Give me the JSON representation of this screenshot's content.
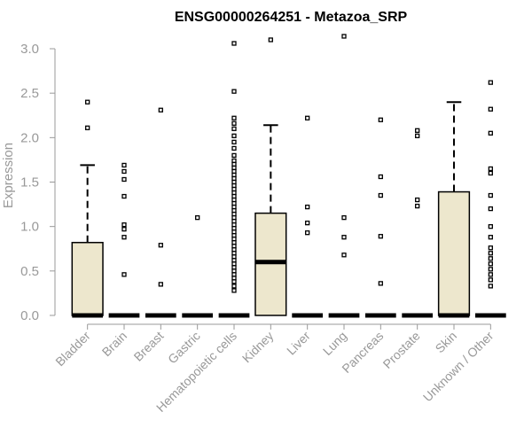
{
  "chart_data": {
    "type": "box",
    "title": "ENSG00000264251 - Metazoa_SRP",
    "ylabel": "Expression",
    "xlabel": "",
    "ylim": [
      0,
      3.0
    ],
    "yticks": [
      "0.0",
      "0.5",
      "1.0",
      "1.5",
      "2.0",
      "2.5",
      "3.0"
    ],
    "box_fill": "#ede7cd",
    "categories": [
      "Bladder",
      "Brain",
      "Breast",
      "Gastric",
      "Hematopoietic cells",
      "Kidney",
      "Liver",
      "Lung",
      "Pancreas",
      "Prostate",
      "Skin",
      "Unknown / Other"
    ],
    "boxes": [
      {
        "q1": 0,
        "median": 0,
        "q3": 0.82,
        "whisker_low": 0,
        "whisker_high": 1.69,
        "outliers": [
          2.4,
          2.11
        ]
      },
      {
        "q1": 0,
        "median": 0,
        "q3": 0,
        "whisker_low": 0,
        "whisker_high": 0,
        "outliers": [
          1.69,
          1.62,
          1.53,
          1.34,
          1.02,
          0.97,
          0.88,
          0.46
        ]
      },
      {
        "q1": 0,
        "median": 0,
        "q3": 0,
        "whisker_low": 0,
        "whisker_high": 0,
        "outliers": [
          2.31,
          0.79,
          0.35
        ]
      },
      {
        "q1": 0,
        "median": 0,
        "q3": 0,
        "whisker_low": 0,
        "whisker_high": 0,
        "outliers": [
          1.1
        ]
      },
      {
        "q1": 0,
        "median": 0,
        "q3": 0,
        "whisker_low": 0,
        "whisker_high": 0,
        "outliers": [
          3.06,
          2.52,
          2.22,
          2.16,
          2.1,
          2.02,
          1.95,
          1.88,
          1.8,
          1.74,
          1.7,
          1.66,
          1.62,
          1.58,
          1.54,
          1.5,
          1.46,
          1.42,
          1.38,
          1.34,
          1.3,
          1.26,
          1.22,
          1.18,
          1.14,
          1.1,
          1.06,
          1.02,
          0.98,
          0.94,
          0.9,
          0.86,
          0.82,
          0.78,
          0.74,
          0.7,
          0.66,
          0.62,
          0.58,
          0.54,
          0.5,
          0.46,
          0.42,
          0.38,
          0.33,
          0.28
        ]
      },
      {
        "q1": 0,
        "median": 0.6,
        "q3": 1.15,
        "whisker_low": 0,
        "whisker_high": 2.14,
        "outliers": [
          3.1
        ]
      },
      {
        "q1": 0,
        "median": 0,
        "q3": 0,
        "whisker_low": 0,
        "whisker_high": 0,
        "outliers": [
          2.22,
          1.22,
          1.04,
          0.93
        ]
      },
      {
        "q1": 0,
        "median": 0,
        "q3": 0,
        "whisker_low": 0,
        "whisker_high": 0,
        "outliers": [
          3.14,
          1.1,
          0.88,
          0.68
        ]
      },
      {
        "q1": 0,
        "median": 0,
        "q3": 0,
        "whisker_low": 0,
        "whisker_high": 0,
        "outliers": [
          2.2,
          1.56,
          1.35,
          0.89,
          0.36
        ]
      },
      {
        "q1": 0,
        "median": 0,
        "q3": 0,
        "whisker_low": 0,
        "whisker_high": 0,
        "outliers": [
          2.08,
          2.02,
          1.3,
          1.23
        ]
      },
      {
        "q1": 0,
        "median": 0,
        "q3": 1.39,
        "whisker_low": 0,
        "whisker_high": 2.4,
        "outliers": []
      },
      {
        "q1": 0,
        "median": 0,
        "q3": 0,
        "whisker_low": 0,
        "whisker_high": 0,
        "outliers": [
          2.62,
          2.32,
          2.05,
          1.65,
          1.6,
          1.35,
          1.2,
          1.0,
          0.88,
          0.76,
          0.7,
          0.64,
          0.58,
          0.52,
          0.46,
          0.4,
          0.33
        ]
      }
    ]
  }
}
